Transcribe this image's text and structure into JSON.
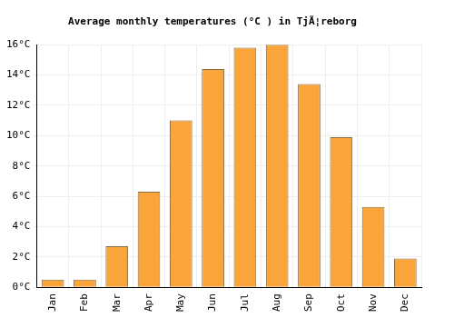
{
  "chart_data": {
    "type": "bar",
    "title": "Average monthly temperatures (°C ) in TjÃ¦reborg",
    "categories": [
      "Jan",
      "Feb",
      "Mar",
      "Apr",
      "May",
      "Jun",
      "Jul",
      "Aug",
      "Sep",
      "Oct",
      "Nov",
      "Dec"
    ],
    "values": [
      0.5,
      0.5,
      2.7,
      6.3,
      11.0,
      14.4,
      15.8,
      16.0,
      13.4,
      9.9,
      5.3,
      1.9
    ],
    "color": "#f9a53c",
    "ylim": [
      0,
      16
    ],
    "yticks": [
      {
        "value": 0,
        "label": "0°C"
      },
      {
        "value": 2,
        "label": "2°C"
      },
      {
        "value": 4,
        "label": "4°C"
      },
      {
        "value": 6,
        "label": "6°C"
      },
      {
        "value": 8,
        "label": "8°C"
      },
      {
        "value": 10,
        "label": "10°C"
      },
      {
        "value": 12,
        "label": "12°C"
      },
      {
        "value": 14,
        "label": "14°C"
      },
      {
        "value": 16,
        "label": "16°C"
      }
    ],
    "grid": true
  }
}
